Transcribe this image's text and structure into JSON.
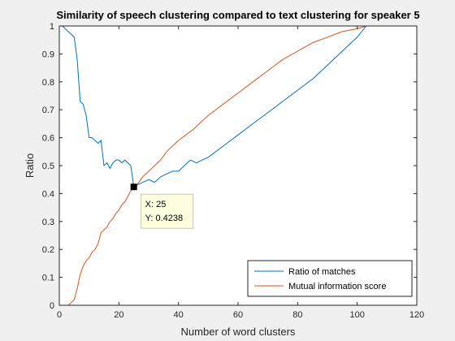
{
  "chart_data": {
    "type": "line",
    "title": "Similarity of speech clustering compared to text clustering for speaker 5",
    "xlabel": "Number of word clusters",
    "ylabel": "Ratio",
    "xlim": [
      0,
      120
    ],
    "ylim": [
      0,
      1
    ],
    "xticks": [
      "0",
      "20",
      "40",
      "60",
      "80",
      "100",
      "120"
    ],
    "yticks": [
      "0",
      "0.1",
      "0.2",
      "0.3",
      "0.4",
      "0.5",
      "0.6",
      "0.7",
      "0.8",
      "0.9",
      "1"
    ],
    "grid": false,
    "legend_position": "bottom-right",
    "series": [
      {
        "name": "Ratio of matches",
        "color": "#0072BD",
        "x": [
          1,
          2,
          3,
          4,
          5,
          6,
          7,
          8,
          9,
          10,
          11,
          12,
          13,
          14,
          15,
          16,
          17,
          18,
          19,
          20,
          21,
          22,
          23,
          24,
          25,
          26,
          28,
          30,
          32,
          34,
          36,
          38,
          40,
          42,
          44,
          46,
          48,
          50,
          55,
          60,
          65,
          70,
          75,
          80,
          85,
          90,
          95,
          100,
          103
        ],
        "y": [
          1.0,
          0.99,
          0.98,
          0.97,
          0.96,
          0.88,
          0.73,
          0.72,
          0.68,
          0.6,
          0.6,
          0.59,
          0.58,
          0.59,
          0.5,
          0.51,
          0.49,
          0.51,
          0.52,
          0.52,
          0.51,
          0.52,
          0.51,
          0.5,
          0.4238,
          0.43,
          0.44,
          0.45,
          0.44,
          0.46,
          0.47,
          0.48,
          0.48,
          0.5,
          0.52,
          0.51,
          0.52,
          0.53,
          0.57,
          0.61,
          0.65,
          0.69,
          0.73,
          0.77,
          0.81,
          0.86,
          0.91,
          0.96,
          1.0
        ]
      },
      {
        "name": "Mutual information score",
        "color": "#D95319",
        "x": [
          1,
          2,
          3,
          4,
          5,
          6,
          7,
          8,
          9,
          10,
          11,
          12,
          13,
          14,
          15,
          16,
          17,
          18,
          19,
          20,
          21,
          22,
          23,
          24,
          25,
          26,
          28,
          30,
          32,
          34,
          36,
          38,
          40,
          45,
          50,
          55,
          60,
          65,
          70,
          75,
          80,
          85,
          90,
          95,
          100,
          103
        ],
        "y": [
          0.0,
          0.0,
          0.0,
          0.01,
          0.02,
          0.06,
          0.11,
          0.14,
          0.16,
          0.17,
          0.19,
          0.2,
          0.22,
          0.26,
          0.27,
          0.28,
          0.3,
          0.31,
          0.33,
          0.34,
          0.36,
          0.37,
          0.39,
          0.41,
          0.4238,
          0.43,
          0.46,
          0.48,
          0.5,
          0.52,
          0.55,
          0.57,
          0.59,
          0.63,
          0.68,
          0.72,
          0.76,
          0.8,
          0.84,
          0.88,
          0.91,
          0.94,
          0.96,
          0.98,
          0.99,
          1.0
        ]
      }
    ],
    "datatip": {
      "x": 25,
      "y": 0.4238,
      "x_text": "X: 25",
      "y_text": "Y: 0.4238"
    }
  }
}
